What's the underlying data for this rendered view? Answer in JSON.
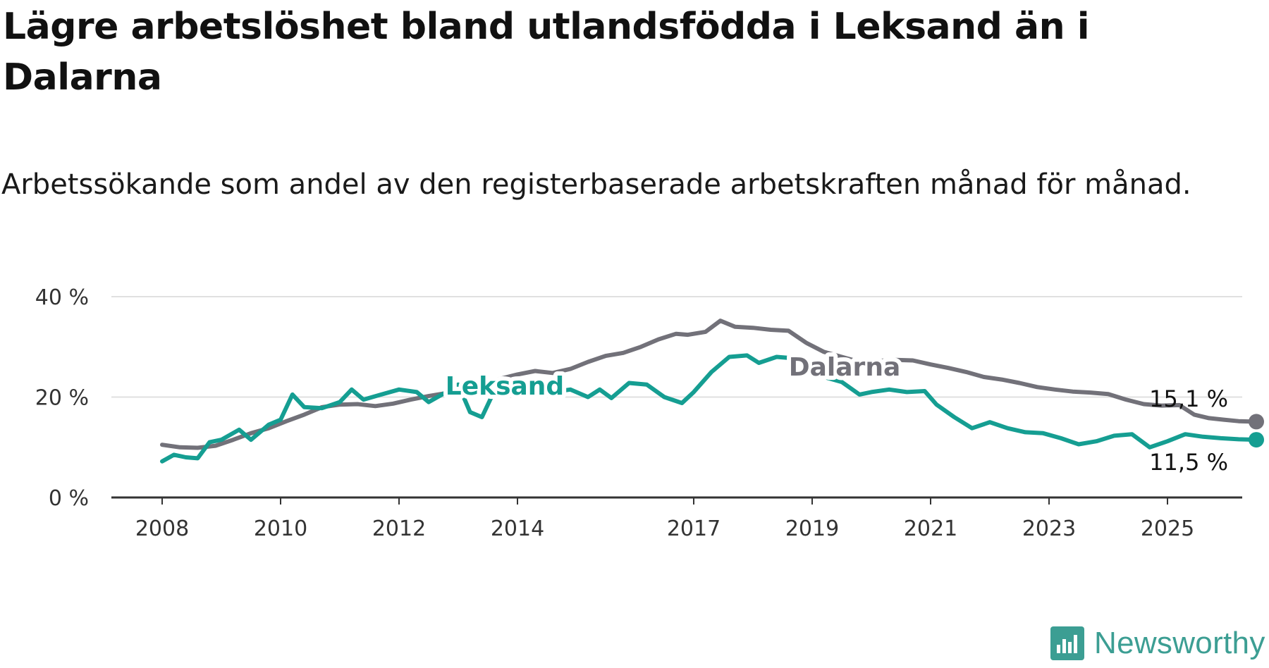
{
  "title": "Lägre arbetslöshet bland utlandsfödda i Leksand än i Dalarna",
  "subtitle": "Arbetssökande som andel av den registerbaserade arbetskraften månad för månad.",
  "brand": {
    "name": "Newsworthy",
    "icon": "bar-chart-icon"
  },
  "colors": {
    "leksand": "#159e92",
    "dalarna": "#727179",
    "grid": "#e0e0e0",
    "axis": "#333333",
    "brand": "#3c9e93"
  },
  "chart_data": {
    "type": "line",
    "grid": true,
    "ylim": [
      0,
      40
    ],
    "yticks": [
      0,
      20,
      40
    ],
    "yticklabels": [
      "0 %",
      "20 %",
      "40 %"
    ],
    "xlim": [
      2007.9,
      2025.7
    ],
    "xticks": [
      2008,
      2010,
      2012,
      2014,
      2017,
      2019,
      2021,
      2023,
      2025
    ],
    "xticklabels": [
      "2008",
      "2010",
      "2012",
      "2014",
      "2017",
      "2019",
      "2021",
      "2023",
      "2025"
    ],
    "xlabel": "",
    "ylabel": "",
    "series": [
      {
        "name": "Dalarna",
        "color": "#727179",
        "end_label": "15,1 %",
        "points": [
          [
            2008.0,
            10.5
          ],
          [
            2008.3,
            10.0
          ],
          [
            2008.6,
            9.9
          ],
          [
            2008.9,
            10.3
          ],
          [
            2009.2,
            11.5
          ],
          [
            2009.5,
            12.8
          ],
          [
            2009.8,
            13.8
          ],
          [
            2010.1,
            15.2
          ],
          [
            2010.4,
            16.5
          ],
          [
            2010.7,
            18.0
          ],
          [
            2011.0,
            18.5
          ],
          [
            2011.3,
            18.6
          ],
          [
            2011.6,
            18.2
          ],
          [
            2011.9,
            18.7
          ],
          [
            2012.2,
            19.5
          ],
          [
            2012.5,
            20.2
          ],
          [
            2012.8,
            20.8
          ],
          [
            2013.1,
            21.5
          ],
          [
            2013.4,
            22.6
          ],
          [
            2013.7,
            23.6
          ],
          [
            2014.0,
            24.5
          ],
          [
            2014.3,
            25.2
          ],
          [
            2014.6,
            24.8
          ],
          [
            2014.9,
            25.6
          ],
          [
            2015.2,
            27.0
          ],
          [
            2015.5,
            28.2
          ],
          [
            2015.8,
            28.8
          ],
          [
            2016.1,
            30.0
          ],
          [
            2016.4,
            31.5
          ],
          [
            2016.7,
            32.6
          ],
          [
            2016.9,
            32.4
          ],
          [
            2017.2,
            33.0
          ],
          [
            2017.45,
            35.2
          ],
          [
            2017.7,
            34.0
          ],
          [
            2018.0,
            33.8
          ],
          [
            2018.3,
            33.4
          ],
          [
            2018.6,
            33.2
          ],
          [
            2018.9,
            30.8
          ],
          [
            2019.2,
            29.0
          ],
          [
            2019.5,
            28.0
          ],
          [
            2019.8,
            27.0
          ],
          [
            2020.1,
            27.2
          ],
          [
            2020.4,
            27.4
          ],
          [
            2020.7,
            27.3
          ],
          [
            2021.0,
            26.5
          ],
          [
            2021.3,
            25.8
          ],
          [
            2021.6,
            25.0
          ],
          [
            2021.9,
            24.0
          ],
          [
            2022.2,
            23.5
          ],
          [
            2022.5,
            22.8
          ],
          [
            2022.8,
            22.0
          ],
          [
            2023.1,
            21.5
          ],
          [
            2023.4,
            21.1
          ],
          [
            2023.7,
            20.9
          ],
          [
            2024.0,
            20.6
          ],
          [
            2024.3,
            19.5
          ],
          [
            2024.6,
            18.6
          ],
          [
            2024.9,
            18.3
          ],
          [
            2025.2,
            18.4
          ],
          [
            2025.45,
            16.5
          ],
          [
            2025.7,
            15.8
          ],
          [
            2025.95,
            15.5
          ],
          [
            2026.2,
            15.2
          ],
          [
            2026.5,
            15.1
          ]
        ]
      },
      {
        "name": "Leksand",
        "color": "#159e92",
        "end_label": "11,5 %",
        "points": [
          [
            2008.0,
            7.2
          ],
          [
            2008.2,
            8.5
          ],
          [
            2008.4,
            8.0
          ],
          [
            2008.6,
            7.8
          ],
          [
            2008.8,
            11.0
          ],
          [
            2009.0,
            11.5
          ],
          [
            2009.3,
            13.5
          ],
          [
            2009.5,
            11.5
          ],
          [
            2009.8,
            14.5
          ],
          [
            2010.0,
            15.5
          ],
          [
            2010.2,
            20.5
          ],
          [
            2010.4,
            18.0
          ],
          [
            2010.7,
            17.8
          ],
          [
            2011.0,
            19.0
          ],
          [
            2011.2,
            21.5
          ],
          [
            2011.4,
            19.5
          ],
          [
            2011.7,
            20.5
          ],
          [
            2012.0,
            21.5
          ],
          [
            2012.3,
            21.0
          ],
          [
            2012.5,
            19.0
          ],
          [
            2012.8,
            21.0
          ],
          [
            2013.0,
            22.5
          ],
          [
            2013.2,
            17.0
          ],
          [
            2013.4,
            16.0
          ],
          [
            2013.6,
            21.0
          ],
          [
            2013.8,
            23.0
          ],
          [
            2014.1,
            23.5
          ],
          [
            2014.3,
            22.0
          ],
          [
            2014.6,
            21.0
          ],
          [
            2014.9,
            21.5
          ],
          [
            2015.2,
            20.0
          ],
          [
            2015.4,
            21.5
          ],
          [
            2015.6,
            19.8
          ],
          [
            2015.9,
            22.8
          ],
          [
            2016.2,
            22.5
          ],
          [
            2016.5,
            20.0
          ],
          [
            2016.8,
            18.8
          ],
          [
            2017.0,
            21.0
          ],
          [
            2017.3,
            25.0
          ],
          [
            2017.6,
            28.0
          ],
          [
            2017.9,
            28.3
          ],
          [
            2018.1,
            26.8
          ],
          [
            2018.4,
            28.0
          ],
          [
            2018.6,
            27.8
          ],
          [
            2018.9,
            26.0
          ],
          [
            2019.2,
            24.0
          ],
          [
            2019.5,
            23.0
          ],
          [
            2019.8,
            20.5
          ],
          [
            2020.0,
            21.0
          ],
          [
            2020.3,
            21.5
          ],
          [
            2020.6,
            21.0
          ],
          [
            2020.9,
            21.2
          ],
          [
            2021.1,
            18.5
          ],
          [
            2021.4,
            16.0
          ],
          [
            2021.7,
            13.8
          ],
          [
            2022.0,
            15.0
          ],
          [
            2022.3,
            13.8
          ],
          [
            2022.6,
            13.0
          ],
          [
            2022.9,
            12.8
          ],
          [
            2023.2,
            11.8
          ],
          [
            2023.5,
            10.6
          ],
          [
            2023.8,
            11.2
          ],
          [
            2024.1,
            12.3
          ],
          [
            2024.4,
            12.6
          ],
          [
            2024.7,
            10.0
          ],
          [
            2025.0,
            11.2
          ],
          [
            2025.3,
            12.6
          ],
          [
            2025.6,
            12.1
          ],
          [
            2025.9,
            11.8
          ],
          [
            2026.2,
            11.6
          ],
          [
            2026.5,
            11.5
          ]
        ]
      }
    ]
  }
}
